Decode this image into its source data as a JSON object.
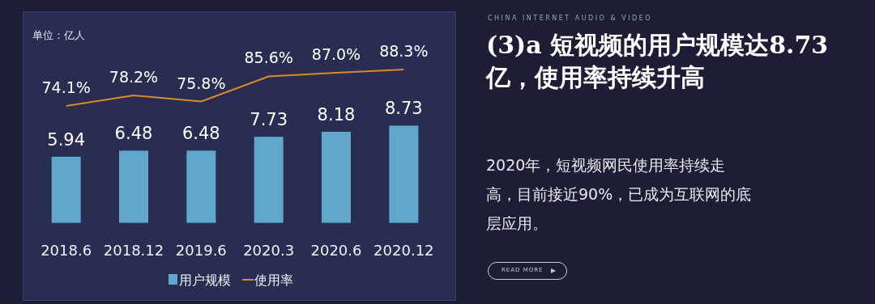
{
  "chart_data": [
    {
      "type": "bar",
      "categories": [
        "2018.6",
        "2018.12",
        "2019.6",
        "2020.3",
        "2020.6",
        "2020.12"
      ],
      "series": [
        {
          "name": "用户规模",
          "type": "bar",
          "color": "#5fa8cc",
          "values": [
            5.94,
            6.48,
            6.48,
            7.73,
            8.18,
            8.73
          ],
          "value_labels": [
            "5.94",
            "6.48",
            "6.48",
            "7.73",
            "8.18",
            "8.73"
          ]
        },
        {
          "name": "使用率",
          "type": "line",
          "axis": "y2",
          "color": "#d98a2a",
          "values": [
            74.1,
            78.2,
            75.8,
            85.6,
            87.0,
            88.3
          ],
          "value_labels": [
            "74.1%",
            "78.2%",
            "75.8%",
            "85.6%",
            "87.0%",
            "88.3%"
          ]
        }
      ],
      "ylim": [
        -7,
        19
      ],
      "y2lim": [
        -2,
        111
      ],
      "annotations": [
        "单位：亿人"
      ],
      "legend": "bottom"
    },
    {
      "type": "other",
      "subtitle": "CHINA INTERNET AUDIO & VIDEO",
      "title": "(3)a 短视频的用户规模达8.73亿，使用率持续升高",
      "annotations": [
        "2020年，短视频网民使用率持续走高，目前接近90%，已成为互联网的底层应用。",
        "READ MORE"
      ]
    }
  ]
}
